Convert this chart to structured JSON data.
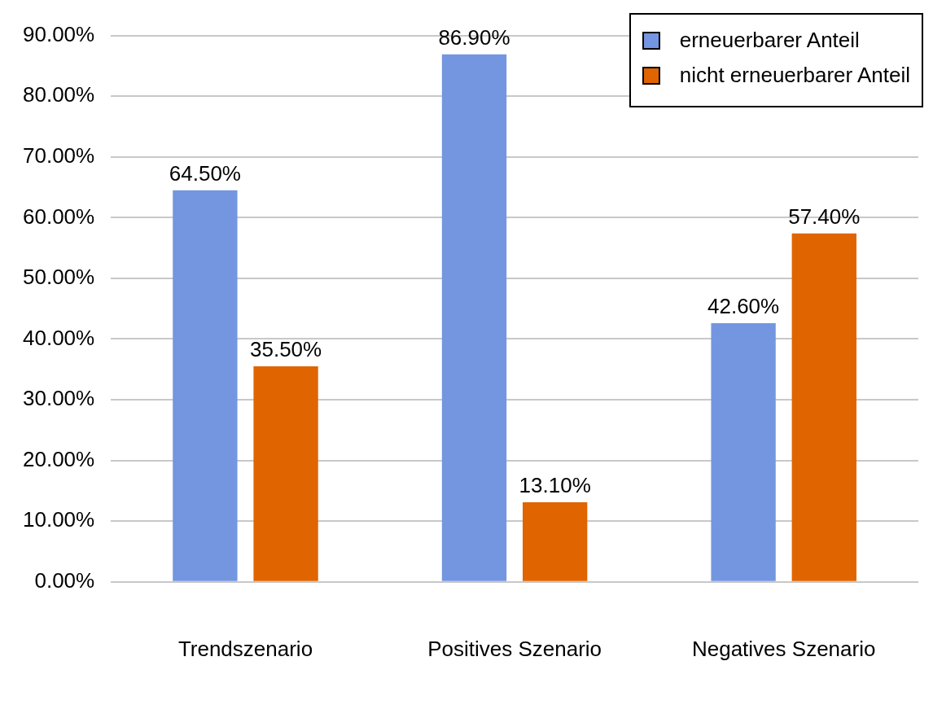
{
  "chart_data": {
    "type": "bar",
    "categories": [
      "Trendszenario",
      "Positives Szenario",
      "Negatives Szenario"
    ],
    "series": [
      {
        "name": "erneuerbarer Anteil",
        "color": "#7496e0",
        "values": [
          64.5,
          86.9,
          42.6
        ],
        "value_labels": [
          "64.50%",
          "86.90%",
          "42.60%"
        ]
      },
      {
        "name": "nicht erneuerbarer Anteil",
        "color": "#e06400",
        "values": [
          35.5,
          13.1,
          57.4
        ],
        "value_labels": [
          "35.50%",
          "13.10%",
          "57.40%"
        ]
      }
    ],
    "ylim": [
      0,
      90
    ],
    "yticks": [
      {
        "value": 0,
        "label": "0.00%"
      },
      {
        "value": 10,
        "label": "10.00%"
      },
      {
        "value": 20,
        "label": "20.00%"
      },
      {
        "value": 30,
        "label": "30.00%"
      },
      {
        "value": 40,
        "label": "40.00%"
      },
      {
        "value": 50,
        "label": "50.00%"
      },
      {
        "value": 60,
        "label": "60.00%"
      },
      {
        "value": 70,
        "label": "70.00%"
      },
      {
        "value": 80,
        "label": "80.00%"
      },
      {
        "value": 90,
        "label": "90.00%"
      }
    ],
    "grid": "y",
    "legend": "top right"
  }
}
